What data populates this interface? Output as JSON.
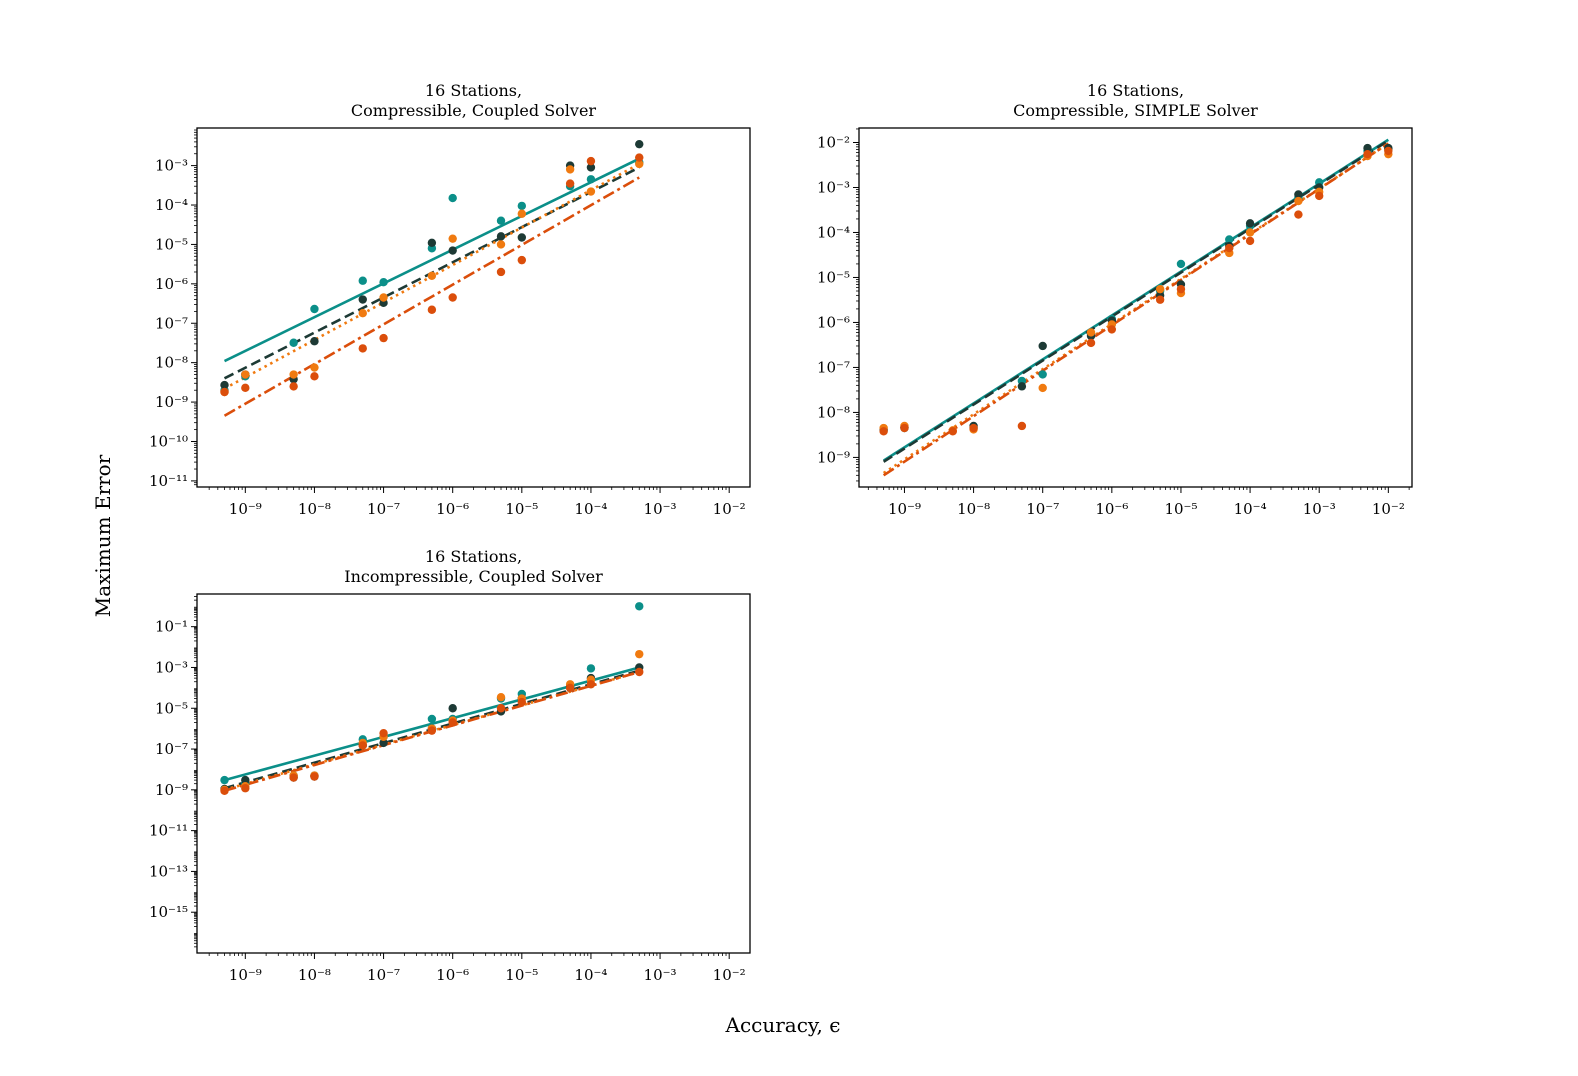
{
  "figure": {
    "ylabel": "Maximum Error",
    "xlabel": "Accuracy, ϵ"
  },
  "colors": {
    "teal": "#0b8f89",
    "dark": "#1d3a35",
    "orange": "#f07a10",
    "red": "#db4e0b"
  },
  "chart_data": [
    {
      "id": "compressible-coupled",
      "type": "scatter",
      "title": [
        "16 Stations,",
        "Compressible, Coupled Solver"
      ],
      "xscale": "log",
      "yscale": "log",
      "xlim": [
        2e-10,
        0.02
      ],
      "ylim": [
        7e-12,
        0.009
      ],
      "xticks": [
        -9,
        -8,
        -7,
        -6,
        -5,
        -4,
        -3,
        -2
      ],
      "yticks": [
        -11,
        -10,
        -9,
        -8,
        -7,
        -6,
        -5,
        -4,
        -3
      ],
      "series": [
        {
          "name": "teal",
          "color": "teal",
          "line_style": "solid",
          "fit": [
            [
              5e-10,
              1.1e-08
            ],
            [
              0.0005,
              0.0015
            ]
          ],
          "points": [
            [
              5e-10,
              2e-09
            ],
            [
              1e-09,
              4.5e-09
            ],
            [
              5e-09,
              3.2e-08
            ],
            [
              1e-08,
              2.3e-07
            ],
            [
              5e-08,
              1.2e-06
            ],
            [
              1e-07,
              1.1e-06
            ],
            [
              5e-07,
              8e-06
            ],
            [
              1e-06,
              0.00015
            ],
            [
              5e-06,
              4e-05
            ],
            [
              1e-05,
              9.5e-05
            ],
            [
              5e-05,
              0.0003
            ],
            [
              0.0001,
              0.00045
            ],
            [
              0.0005,
              0.0012
            ]
          ]
        },
        {
          "name": "dark",
          "color": "dark",
          "line_style": "dashed",
          "fit": [
            [
              5e-10,
              4e-09
            ],
            [
              0.0005,
              0.0009
            ]
          ],
          "points": [
            [
              5e-10,
              2.7e-09
            ],
            [
              1e-09,
              5e-09
            ],
            [
              5e-09,
              3.8e-09
            ],
            [
              1e-08,
              3.5e-08
            ],
            [
              5e-08,
              4e-07
            ],
            [
              1e-07,
              3.3e-07
            ],
            [
              5e-07,
              1.1e-05
            ],
            [
              1e-06,
              7e-06
            ],
            [
              5e-06,
              1.6e-05
            ],
            [
              1e-05,
              1.5e-05
            ],
            [
              5e-05,
              0.001
            ],
            [
              0.0001,
              0.0009
            ],
            [
              0.0005,
              0.0035
            ]
          ]
        },
        {
          "name": "orange",
          "color": "orange",
          "line_style": "dotted",
          "fit": [
            [
              5e-10,
              2.2e-09
            ],
            [
              0.0005,
              0.0011
            ]
          ],
          "points": [
            [
              5e-10,
              1.8e-09
            ],
            [
              1e-09,
              5e-09
            ],
            [
              5e-09,
              5e-09
            ],
            [
              1e-08,
              7.5e-09
            ],
            [
              5e-08,
              1.8e-07
            ],
            [
              1e-07,
              4.5e-07
            ],
            [
              5e-07,
              1.6e-06
            ],
            [
              1e-06,
              1.4e-05
            ],
            [
              5e-06,
              1e-05
            ],
            [
              1e-05,
              6e-05
            ],
            [
              5e-05,
              0.0008
            ],
            [
              0.0001,
              0.00022
            ],
            [
              0.0005,
              0.0011
            ]
          ]
        },
        {
          "name": "red",
          "color": "red",
          "line_style": "dashdot",
          "fit": [
            [
              5e-10,
              4.5e-10
            ],
            [
              0.0005,
              0.0005
            ]
          ],
          "points": [
            [
              5e-10,
              1.8e-09
            ],
            [
              1e-09,
              2.3e-09
            ],
            [
              5e-09,
              2.5e-09
            ],
            [
              1e-08,
              4.5e-09
            ],
            [
              5e-08,
              2.3e-08
            ],
            [
              1e-07,
              4.2e-08
            ],
            [
              5e-07,
              2.2e-07
            ],
            [
              1e-06,
              4.5e-07
            ],
            [
              5e-06,
              2e-06
            ],
            [
              1e-05,
              4e-06
            ],
            [
              5e-05,
              0.00035
            ],
            [
              0.0001,
              0.0013
            ],
            [
              0.0005,
              0.0016
            ]
          ]
        }
      ]
    },
    {
      "id": "compressible-simple",
      "type": "scatter",
      "title": [
        "16 Stations,",
        "Compressible, SIMPLE Solver"
      ],
      "xscale": "log",
      "yscale": "log",
      "xlim": [
        2.2e-10,
        0.022
      ],
      "ylim": [
        2.2e-10,
        0.021
      ],
      "xticks": [
        -9,
        -8,
        -7,
        -6,
        -5,
        -4,
        -3,
        -2
      ],
      "yticks": [
        -9,
        -8,
        -7,
        -6,
        -5,
        -4,
        -3,
        -2
      ],
      "series": [
        {
          "name": "teal",
          "color": "teal",
          "line_style": "solid",
          "fit": [
            [
              5e-10,
              8.5e-10
            ],
            [
              0.01,
              0.0115
            ]
          ],
          "points": [
            [
              5e-10,
              4e-09
            ],
            [
              1e-09,
              4.5e-09
            ],
            [
              1e-08,
              4.5e-09
            ],
            [
              5e-08,
              5e-08
            ],
            [
              1e-07,
              7e-08
            ],
            [
              5e-07,
              5.5e-07
            ],
            [
              1e-06,
              1.2e-06
            ],
            [
              5e-06,
              5e-06
            ],
            [
              1e-05,
              2e-05
            ],
            [
              5e-05,
              7e-05
            ],
            [
              0.0001,
              0.00014
            ],
            [
              0.0005,
              0.0006
            ],
            [
              0.001,
              0.0013
            ],
            [
              0.005,
              0.0065
            ],
            [
              0.01,
              0.007
            ]
          ]
        },
        {
          "name": "dark",
          "color": "dark",
          "line_style": "dashed",
          "fit": [
            [
              5e-10,
              8e-10
            ],
            [
              0.01,
              0.011
            ]
          ],
          "points": [
            [
              5e-10,
              4.2e-09
            ],
            [
              1e-09,
              4.7e-09
            ],
            [
              1e-08,
              5e-09
            ],
            [
              5e-08,
              3.8e-08
            ],
            [
              1e-07,
              3e-07
            ],
            [
              5e-07,
              5e-07
            ],
            [
              1e-06,
              1.1e-06
            ],
            [
              5e-06,
              4e-06
            ],
            [
              1e-05,
              7e-06
            ],
            [
              5e-05,
              5e-05
            ],
            [
              0.0001,
              0.00016
            ],
            [
              0.0005,
              0.0007
            ],
            [
              0.001,
              0.001
            ],
            [
              0.005,
              0.0075
            ],
            [
              0.01,
              0.0075
            ]
          ]
        },
        {
          "name": "orange",
          "color": "orange",
          "line_style": "dotted",
          "fit": [
            [
              5e-10,
              4.5e-10
            ],
            [
              0.01,
              0.0095
            ]
          ],
          "points": [
            [
              5e-10,
              4.5e-09
            ],
            [
              1e-09,
              5e-09
            ],
            [
              5e-09,
              4e-09
            ],
            [
              1e-08,
              4.2e-09
            ],
            [
              1e-07,
              3.5e-08
            ],
            [
              5e-07,
              6e-07
            ],
            [
              1e-06,
              9e-07
            ],
            [
              5e-06,
              5.5e-06
            ],
            [
              1e-05,
              4.5e-06
            ],
            [
              5e-05,
              3.5e-05
            ],
            [
              0.0001,
              0.0001
            ],
            [
              0.0005,
              0.0005
            ],
            [
              0.001,
              0.0008
            ],
            [
              0.005,
              0.005
            ],
            [
              0.01,
              0.0055
            ]
          ]
        },
        {
          "name": "red",
          "color": "red",
          "line_style": "dashdot",
          "fit": [
            [
              5e-10,
              4e-10
            ],
            [
              0.01,
              0.0095
            ]
          ],
          "points": [
            [
              5e-10,
              3.8e-09
            ],
            [
              1e-09,
              4.5e-09
            ],
            [
              5e-09,
              3.8e-09
            ],
            [
              1e-08,
              4.5e-09
            ],
            [
              5e-08,
              5e-09
            ],
            [
              5e-07,
              3.5e-07
            ],
            [
              1e-06,
              7e-07
            ],
            [
              5e-06,
              3.2e-06
            ],
            [
              1e-05,
              5.5e-06
            ],
            [
              5e-05,
              4.5e-05
            ],
            [
              0.0001,
              6.5e-05
            ],
            [
              0.0005,
              0.00025
            ],
            [
              0.001,
              0.00065
            ],
            [
              0.005,
              0.0055
            ],
            [
              0.01,
              0.0065
            ]
          ]
        }
      ]
    },
    {
      "id": "incompressible-coupled",
      "type": "scatter",
      "title": [
        "16 Stations,",
        "Incompressible, Coupled Solver"
      ],
      "xscale": "log",
      "yscale": "log",
      "xlim": [
        2e-10,
        0.02
      ],
      "ylim": [
        1e-17,
        4
      ],
      "xticks": [
        -9,
        -8,
        -7,
        -6,
        -5,
        -4,
        -3,
        -2
      ],
      "yticks": [
        -15,
        -13,
        -11,
        -9,
        -7,
        -5,
        -3,
        -1
      ],
      "series": [
        {
          "name": "teal",
          "color": "teal",
          "line_style": "solid",
          "fit": [
            [
              5e-10,
              3e-09
            ],
            [
              0.0005,
              0.001
            ]
          ],
          "points": [
            [
              5e-10,
              3e-09
            ],
            [
              1e-09,
              2.2e-09
            ],
            [
              5e-09,
              5e-09
            ],
            [
              1e-08,
              5e-09
            ],
            [
              5e-08,
              3e-07
            ],
            [
              1e-07,
              4e-07
            ],
            [
              5e-07,
              3e-06
            ],
            [
              1e-06,
              3e-06
            ],
            [
              5e-06,
              3e-05
            ],
            [
              1e-05,
              5e-05
            ],
            [
              5e-05,
              0.0001
            ],
            [
              0.0001,
              0.0009
            ],
            [
              0.0005,
              1
            ]
          ]
        },
        {
          "name": "dark",
          "color": "dark",
          "line_style": "dashed",
          "fit": [
            [
              5e-10,
              1.2e-09
            ],
            [
              0.0005,
              0.0007
            ]
          ],
          "points": [
            [
              5e-10,
              1.1e-09
            ],
            [
              1e-09,
              3e-09
            ],
            [
              5e-09,
              4e-09
            ],
            [
              1e-08,
              4.5e-09
            ],
            [
              5e-08,
              1.5e-07
            ],
            [
              1e-07,
              2e-07
            ],
            [
              5e-07,
              1e-06
            ],
            [
              1e-06,
              1e-05
            ],
            [
              5e-06,
              7e-06
            ],
            [
              1e-05,
              3e-05
            ],
            [
              5e-05,
              0.00012
            ],
            [
              0.0001,
              0.0003
            ],
            [
              0.0005,
              0.001
            ]
          ]
        },
        {
          "name": "orange",
          "color": "orange",
          "line_style": "dotted",
          "fit": [
            [
              5e-10,
              1e-09
            ],
            [
              0.0005,
              0.0006
            ]
          ],
          "points": [
            [
              5e-10,
              1e-09
            ],
            [
              1e-09,
              1.5e-09
            ],
            [
              5e-09,
              5e-09
            ],
            [
              1e-08,
              5e-09
            ],
            [
              5e-08,
              2e-07
            ],
            [
              1e-07,
              4e-07
            ],
            [
              5e-07,
              1e-06
            ],
            [
              1e-06,
              2.5e-06
            ],
            [
              5e-06,
              3.5e-05
            ],
            [
              1e-05,
              3e-05
            ],
            [
              5e-05,
              0.00015
            ],
            [
              0.0001,
              0.00025
            ],
            [
              0.0005,
              0.0045
            ]
          ]
        },
        {
          "name": "red",
          "color": "red",
          "line_style": "dashdot",
          "fit": [
            [
              5e-10,
              9e-10
            ],
            [
              0.0005,
              0.0006
            ]
          ],
          "points": [
            [
              5e-10,
              9e-10
            ],
            [
              1e-09,
              1.2e-09
            ],
            [
              5e-09,
              4e-09
            ],
            [
              1e-08,
              4.5e-09
            ],
            [
              5e-08,
              1.5e-07
            ],
            [
              1e-07,
              6e-07
            ],
            [
              5e-07,
              8e-07
            ],
            [
              1e-06,
              2e-06
            ],
            [
              5e-06,
              1e-05
            ],
            [
              1e-05,
              2e-05
            ],
            [
              5e-05,
              0.0001
            ],
            [
              0.0001,
              0.00015
            ],
            [
              0.0005,
              0.0006
            ]
          ]
        }
      ]
    }
  ]
}
